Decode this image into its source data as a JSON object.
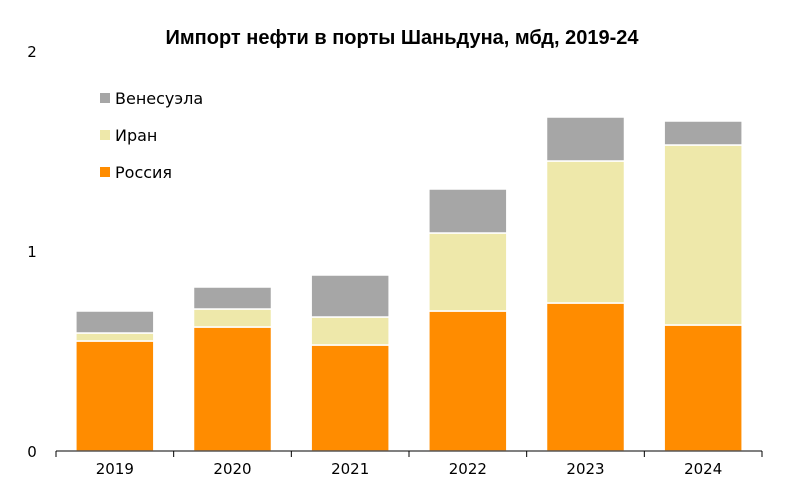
{
  "chart_data": {
    "type": "bar",
    "stacked": true,
    "title": "Импорт нефти в порты Шаньдуна, мбд, 2019-24",
    "xlabel": "",
    "ylabel": "",
    "ylim": [
      0,
      2
    ],
    "yticks": [
      "0",
      "1",
      "2"
    ],
    "categories": [
      "2019",
      "2020",
      "2021",
      "2022",
      "2023",
      "2024"
    ],
    "series": [
      {
        "name": "Россия",
        "color": "#FF8C00",
        "values": [
          0.55,
          0.62,
          0.53,
          0.7,
          0.74,
          0.63
        ]
      },
      {
        "name": "Иран",
        "color": "#EEE8AA",
        "values": [
          0.04,
          0.09,
          0.14,
          0.39,
          0.71,
          0.9
        ]
      },
      {
        "name": "Венесуэла",
        "color": "#A6A6A6",
        "values": [
          0.11,
          0.11,
          0.21,
          0.22,
          0.22,
          0.12
        ]
      }
    ],
    "legend_order": [
      "Венесуэла",
      "Иран",
      "Россия"
    ],
    "legend_position": "top-left",
    "grid": false
  }
}
